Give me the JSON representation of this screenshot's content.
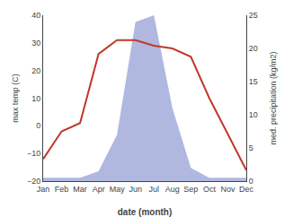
{
  "chart_data": {
    "type": "line",
    "categories": [
      "Jan",
      "Feb",
      "Mar",
      "Apr",
      "May",
      "Jun",
      "Jul",
      "Aug",
      "Sep",
      "Oct",
      "Nov",
      "Dec"
    ],
    "xlabel": "date (month)",
    "ylabel": "max temp (C)",
    "y2label": "med. precipitation (kg/m2)",
    "ylim": [
      -20,
      40
    ],
    "yticks": [
      -20,
      -10,
      0,
      10,
      20,
      30,
      40
    ],
    "y2lim": [
      0,
      25
    ],
    "y2ticks": [
      0,
      5,
      10,
      15,
      20,
      25
    ],
    "grid": false,
    "series": [
      {
        "type": "area",
        "color": "#b0b8e0",
        "axis": "y2",
        "values": [
          0.5,
          0.5,
          0.5,
          1.5,
          7,
          24,
          25,
          11,
          2,
          0.5,
          0.5,
          0.5
        ]
      },
      {
        "type": "line",
        "color": "#c0392b",
        "axis": "y",
        "values": [
          -12,
          -2,
          1,
          26,
          31,
          31,
          29,
          28,
          25,
          10,
          -3,
          -16
        ]
      }
    ]
  }
}
